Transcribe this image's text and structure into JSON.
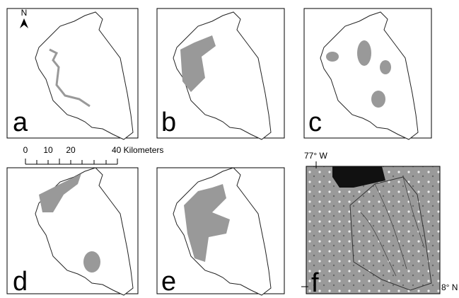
{
  "panels": [
    {
      "label": "a"
    },
    {
      "label": "b"
    },
    {
      "label": "c"
    },
    {
      "label": "d"
    },
    {
      "label": "e"
    },
    {
      "label": "f"
    }
  ],
  "north_arrow": "N",
  "scale_bar": {
    "labels": [
      "0",
      "10",
      "20",
      "40 Kilometers"
    ]
  },
  "coordinates": {
    "longitude": "77° W",
    "latitude": "8° N"
  }
}
